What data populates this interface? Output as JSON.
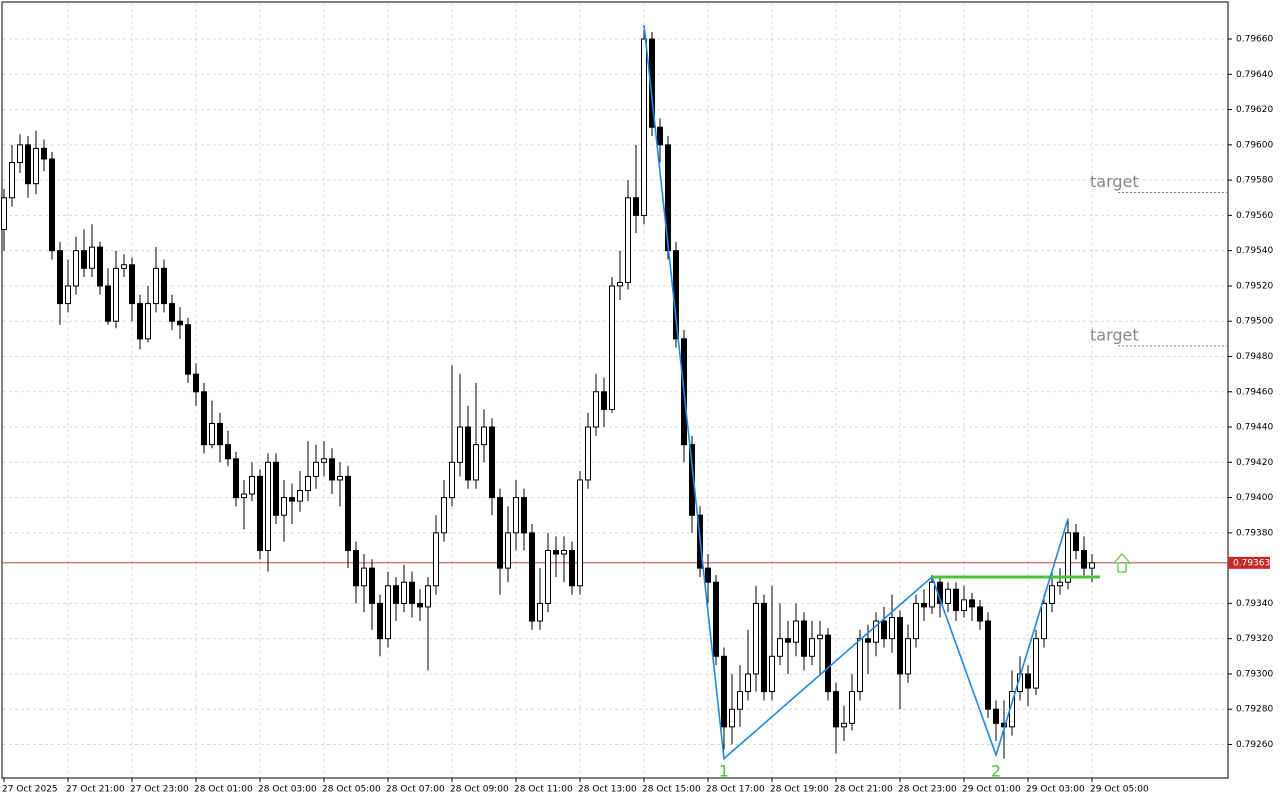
{
  "chart_data": {
    "type": "candlestick",
    "categories": [
      "27 Oct 2025",
      null,
      null,
      null,
      null,
      null,
      null,
      null,
      "27 Oct 21:00",
      null,
      null,
      null,
      null,
      null,
      null,
      null,
      "27 Oct 23:00",
      null,
      null,
      null,
      null,
      null,
      null,
      null,
      "28 Oct 01:00",
      null,
      null,
      null,
      null,
      null,
      null,
      null,
      "28 Oct 03:00",
      null,
      null,
      null,
      null,
      null,
      null,
      null,
      "28 Oct 05:00",
      null,
      null,
      null,
      null,
      null,
      null,
      null,
      "28 Oct 07:00",
      null,
      null,
      null,
      null,
      null,
      null,
      null,
      "28 Oct 09:00",
      null,
      null,
      null,
      null,
      null,
      null,
      null,
      "28 Oct 11:00",
      null,
      null,
      null,
      null,
      null,
      null,
      null,
      "28 Oct 13:00",
      null,
      null,
      null,
      null,
      null,
      null,
      null,
      "28 Oct 15:00",
      null,
      null,
      null,
      null,
      null,
      null,
      null,
      "28 Oct 17:00",
      null,
      null,
      null,
      null,
      null,
      null,
      null,
      "28 Oct 19:00",
      null,
      null,
      null,
      null,
      null,
      null,
      null,
      "28 Oct 21:00",
      null,
      null,
      null,
      null,
      null,
      null,
      null,
      "28 Oct 23:00",
      null,
      null,
      null,
      null,
      null,
      null,
      null,
      "29 Oct 01:00",
      null,
      null,
      null,
      null,
      null,
      null,
      null,
      "29 Oct 03:00",
      null,
      null,
      null,
      null,
      null,
      null,
      null,
      "29 Oct 05:00"
    ],
    "open": [
      0.79552,
      0.7957,
      0.7959,
      0.796,
      0.79578,
      0.79598,
      0.79592,
      0.7954,
      0.7951,
      0.7952,
      0.7954,
      0.7953,
      0.79542,
      0.7952,
      0.795,
      0.7953,
      0.79532,
      0.7951,
      0.7949,
      0.7951,
      0.7953,
      0.7951,
      0.795,
      0.79498,
      0.7947,
      0.7946,
      0.7943,
      0.79442,
      0.7943,
      0.79422,
      0.794,
      0.79402,
      0.79412,
      0.7937,
      0.7942,
      0.7939,
      0.794,
      0.79398,
      0.79404,
      0.79412,
      0.7942,
      0.79422,
      0.7941,
      0.79412,
      0.7937,
      0.7935,
      0.7936,
      0.7934,
      0.7932,
      0.7935,
      0.7934,
      0.79352,
      0.7934,
      0.79338,
      0.7935,
      0.7938,
      0.794,
      0.7942,
      0.7944,
      0.7941,
      0.7943,
      0.7944,
      0.794,
      0.7936,
      0.7938,
      0.794,
      0.7938,
      0.7933,
      0.7934,
      0.7937,
      0.79368,
      0.7937,
      0.7935,
      0.7941,
      0.7944,
      0.7946,
      0.7945,
      0.7952,
      0.79522,
      0.7957,
      0.7956,
      0.7966,
      0.7961,
      0.796,
      0.7954,
      0.7949,
      0.7943,
      0.7939,
      0.7936,
      0.79352,
      0.7931,
      0.7927,
      0.7928,
      0.7929,
      0.793,
      0.7934,
      0.7929,
      0.7931,
      0.7932,
      0.79318,
      0.7933,
      0.7931,
      0.7932,
      0.79322,
      0.7929,
      0.7927,
      0.79272,
      0.7929,
      0.7932,
      0.79318,
      0.7933,
      0.7932,
      0.79332,
      0.793,
      0.7932,
      0.7934,
      0.79338,
      0.79352,
      0.7934,
      0.79348,
      0.79336,
      0.79342,
      0.79338,
      0.7933,
      0.7928,
      0.79272,
      0.7927,
      0.7929,
      0.793,
      0.79292,
      0.7932,
      0.7934,
      0.7935,
      0.79352,
      0.7938,
      0.7937,
      0.7936
    ],
    "high": [
      0.79575,
      0.796,
      0.79606,
      0.79605,
      0.79608,
      0.79603,
      0.79596,
      0.79545,
      0.79535,
      0.79548,
      0.79552,
      0.79555,
      0.79545,
      0.7953,
      0.7954,
      0.79538,
      0.79536,
      0.79515,
      0.7952,
      0.79542,
      0.79535,
      0.79515,
      0.79508,
      0.79502,
      0.79476,
      0.79465,
      0.79455,
      0.79448,
      0.79438,
      0.79426,
      0.7941,
      0.7942,
      0.79416,
      0.79425,
      0.79425,
      0.7941,
      0.79408,
      0.79415,
      0.79432,
      0.7943,
      0.79432,
      0.79428,
      0.7942,
      0.79418,
      0.79375,
      0.79368,
      0.79365,
      0.79345,
      0.79358,
      0.79355,
      0.79362,
      0.79358,
      0.79348,
      0.79355,
      0.7939,
      0.7941,
      0.79475,
      0.7947,
      0.79452,
      0.79465,
      0.7945,
      0.79445,
      0.79405,
      0.79395,
      0.7941,
      0.79405,
      0.79385,
      0.7936,
      0.7938,
      0.79378,
      0.79378,
      0.79375,
      0.79415,
      0.79448,
      0.7947,
      0.79468,
      0.79525,
      0.7954,
      0.7958,
      0.796,
      0.79665,
      0.79664,
      0.79615,
      0.79605,
      0.79545,
      0.79495,
      0.79435,
      0.79395,
      0.79368,
      0.79356,
      0.79315,
      0.793,
      0.79305,
      0.79325,
      0.7935,
      0.79345,
      0.7935,
      0.7934,
      0.7933,
      0.7934,
      0.79335,
      0.7933,
      0.7933,
      0.79326,
      0.79295,
      0.79282,
      0.793,
      0.79325,
      0.79328,
      0.79335,
      0.79338,
      0.79345,
      0.79336,
      0.79328,
      0.79345,
      0.79348,
      0.79356,
      0.79355,
      0.79352,
      0.79352,
      0.7935,
      0.79346,
      0.79342,
      0.79335,
      0.79285,
      0.79285,
      0.79302,
      0.7931,
      0.79305,
      0.79325,
      0.79345,
      0.79358,
      0.7936,
      0.79388,
      0.79385,
      0.79378,
      0.79368
    ],
    "low": [
      0.7954,
      0.79565,
      0.79584,
      0.7957,
      0.79572,
      0.79585,
      0.79535,
      0.79498,
      0.79505,
      0.79515,
      0.79525,
      0.79525,
      0.79515,
      0.79498,
      0.79496,
      0.79525,
      0.795,
      0.79484,
      0.79488,
      0.79505,
      0.79505,
      0.79495,
      0.7949,
      0.79465,
      0.79452,
      0.79425,
      0.79428,
      0.7942,
      0.79418,
      0.79395,
      0.79382,
      0.79398,
      0.79365,
      0.79358,
      0.79385,
      0.79375,
      0.79385,
      0.79392,
      0.79398,
      0.79405,
      0.79412,
      0.79402,
      0.79395,
      0.7936,
      0.7934,
      0.79335,
      0.79325,
      0.7931,
      0.79315,
      0.7933,
      0.79335,
      0.79332,
      0.7933,
      0.79302,
      0.79345,
      0.79375,
      0.79395,
      0.79412,
      0.79405,
      0.79405,
      0.7942,
      0.7939,
      0.79345,
      0.79352,
      0.7937,
      0.7937,
      0.79325,
      0.79325,
      0.79335,
      0.79355,
      0.79352,
      0.79345,
      0.79345,
      0.79405,
      0.79435,
      0.7944,
      0.79448,
      0.79512,
      0.79518,
      0.7955,
      0.79555,
      0.79605,
      0.7959,
      0.79535,
      0.79485,
      0.7942,
      0.7938,
      0.79355,
      0.7934,
      0.79305,
      0.79257,
      0.7926,
      0.7927,
      0.79285,
      0.7929,
      0.79285,
      0.79285,
      0.79305,
      0.793,
      0.7931,
      0.79302,
      0.79305,
      0.793,
      0.79285,
      0.79255,
      0.79262,
      0.79268,
      0.79285,
      0.793,
      0.7931,
      0.79315,
      0.79312,
      0.7928,
      0.79295,
      0.79315,
      0.7933,
      0.79334,
      0.79332,
      0.79335,
      0.7933,
      0.79332,
      0.7933,
      0.79325,
      0.79275,
      0.79262,
      0.79252,
      0.79265,
      0.79285,
      0.79282,
      0.79288,
      0.79315,
      0.79335,
      0.79345,
      0.79348,
      0.79365,
      0.79355,
      0.79352
    ],
    "close": [
      0.7957,
      0.7959,
      0.796,
      0.79578,
      0.79598,
      0.79592,
      0.7954,
      0.7951,
      0.7952,
      0.7954,
      0.7953,
      0.79542,
      0.7952,
      0.795,
      0.7953,
      0.79532,
      0.7951,
      0.7949,
      0.7951,
      0.7953,
      0.7951,
      0.795,
      0.79498,
      0.7947,
      0.7946,
      0.7943,
      0.79442,
      0.7943,
      0.79422,
      0.794,
      0.79402,
      0.79412,
      0.7937,
      0.7942,
      0.7939,
      0.794,
      0.79398,
      0.79404,
      0.79412,
      0.7942,
      0.79422,
      0.7941,
      0.79412,
      0.7937,
      0.7935,
      0.7936,
      0.7934,
      0.7932,
      0.7935,
      0.7934,
      0.79352,
      0.7934,
      0.79338,
      0.7935,
      0.7938,
      0.794,
      0.7942,
      0.7944,
      0.7941,
      0.7943,
      0.7944,
      0.794,
      0.7936,
      0.7938,
      0.794,
      0.7938,
      0.7933,
      0.7934,
      0.7937,
      0.79368,
      0.7937,
      0.7935,
      0.7941,
      0.7944,
      0.7946,
      0.7945,
      0.7952,
      0.79522,
      0.7957,
      0.7956,
      0.7966,
      0.7961,
      0.796,
      0.7954,
      0.7949,
      0.7943,
      0.7939,
      0.7936,
      0.79352,
      0.7931,
      0.7927,
      0.7928,
      0.7929,
      0.793,
      0.7934,
      0.7929,
      0.7931,
      0.7932,
      0.79318,
      0.7933,
      0.7931,
      0.7932,
      0.79322,
      0.7929,
      0.7927,
      0.79272,
      0.7929,
      0.7932,
      0.79318,
      0.7933,
      0.7932,
      0.79332,
      0.793,
      0.7932,
      0.7934,
      0.79338,
      0.79352,
      0.7934,
      0.79348,
      0.79336,
      0.79342,
      0.79338,
      0.7933,
      0.7928,
      0.79272,
      0.7927,
      0.7929,
      0.793,
      0.79292,
      0.7932,
      0.7934,
      0.7935,
      0.79352,
      0.7938,
      0.7937,
      0.7936,
      0.79363
    ],
    "ylim": [
      0.79241,
      0.79681
    ],
    "yticks": [
      {
        "value": 0.7926,
        "label": "0.79260"
      },
      {
        "value": 0.7928,
        "label": "0.79280"
      },
      {
        "value": 0.793,
        "label": "0.79300"
      },
      {
        "value": 0.7932,
        "label": "0.79320"
      },
      {
        "value": 0.7934,
        "label": "0.79340"
      },
      {
        "value": 0.7938,
        "label": "0.79380"
      },
      {
        "value": 0.794,
        "label": "0.79400"
      },
      {
        "value": 0.7942,
        "label": "0.79420"
      },
      {
        "value": 0.7944,
        "label": "0.79440"
      },
      {
        "value": 0.7946,
        "label": "0.79460"
      },
      {
        "value": 0.7948,
        "label": "0.79480"
      },
      {
        "value": 0.795,
        "label": "0.79500"
      },
      {
        "value": 0.7952,
        "label": "0.79520"
      },
      {
        "value": 0.7954,
        "label": "0.79540"
      },
      {
        "value": 0.7956,
        "label": "0.79560"
      },
      {
        "value": 0.7958,
        "label": "0.79580"
      },
      {
        "value": 0.796,
        "label": "0.79600"
      },
      {
        "value": 0.7962,
        "label": "0.79620"
      },
      {
        "value": 0.7964,
        "label": "0.79640"
      },
      {
        "value": 0.7966,
        "label": "0.79660"
      }
    ],
    "grid": true,
    "current_price": {
      "value": 0.79363,
      "label": "0.79363",
      "color": "#c62828"
    },
    "targets": [
      {
        "label": "target",
        "value": 0.79573
      },
      {
        "label": "target",
        "value": 0.79486
      }
    ],
    "zigzag": {
      "color": "#1e88e5",
      "index": [
        80,
        90,
        116,
        124,
        133
      ],
      "values": [
        0.79668,
        0.79252,
        0.79355,
        0.79254,
        0.79388
      ]
    },
    "wave_labels": [
      {
        "label": "1",
        "index": 90
      },
      {
        "label": "2",
        "index": 124
      }
    ],
    "level": {
      "value": 0.79355,
      "start": 116,
      "color": "#4cc43a"
    }
  }
}
